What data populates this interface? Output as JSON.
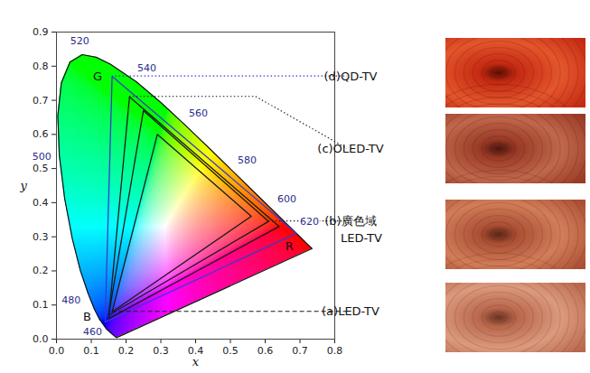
{
  "chart_data": {
    "type": "chromaticity",
    "xlabel": "x",
    "ylabel": "y",
    "xlim": [
      0,
      0.8
    ],
    "ylim": [
      0,
      0.9
    ],
    "xticks": [
      {
        "value": 0,
        "label": "0.0"
      },
      0.1,
      0.2,
      0.3,
      0.4,
      0.5,
      0.6,
      0.7,
      0.8
    ],
    "yticks": [
      {
        "value": 0,
        "label": "0.0"
      },
      0.1,
      0.2,
      0.3,
      0.4,
      0.5,
      0.6,
      0.7,
      0.8,
      0.9
    ],
    "grid": false,
    "spectral_locus": {
      "x": [
        0.1741,
        0.1714,
        0.1644,
        0.1566,
        0.144,
        0.1241,
        0.1096,
        0.0913,
        0.0687,
        0.0454,
        0.0235,
        0.0082,
        0.0039,
        0.0139,
        0.0389,
        0.0743,
        0.1142,
        0.1547,
        0.2296,
        0.3016,
        0.3731,
        0.4441,
        0.5125,
        0.5752,
        0.627,
        0.6658,
        0.6915,
        0.719,
        0.73,
        0.7347
      ],
      "y": [
        0.005,
        0.0051,
        0.0109,
        0.0177,
        0.0297,
        0.0578,
        0.0868,
        0.1327,
        0.2007,
        0.295,
        0.4127,
        0.5384,
        0.6548,
        0.7502,
        0.812,
        0.8338,
        0.8262,
        0.8059,
        0.7543,
        0.6923,
        0.6245,
        0.5547,
        0.4866,
        0.4242,
        0.3725,
        0.334,
        0.3083,
        0.2809,
        0.27,
        0.2653
      ]
    },
    "wavelength_labels": [
      {
        "value": 460,
        "x": 0.144,
        "y": 0.0297
      },
      {
        "value": 480,
        "x": 0.0913,
        "y": 0.1327
      },
      {
        "value": 500,
        "x": 0.0082,
        "y": 0.5384
      },
      {
        "value": 520,
        "x": 0.0743,
        "y": 0.8338
      },
      {
        "value": 540,
        "x": 0.2296,
        "y": 0.7543
      },
      {
        "value": 560,
        "x": 0.3731,
        "y": 0.6245
      },
      {
        "value": 580,
        "x": 0.5125,
        "y": 0.4866
      },
      {
        "value": 600,
        "x": 0.627,
        "y": 0.3725
      },
      {
        "value": 620,
        "x": 0.6915,
        "y": 0.3083
      }
    ],
    "vertex_labels": [
      "R",
      "G",
      "B"
    ],
    "series": [
      {
        "name": "(a)LED-TV",
        "color": "#1a1a1a",
        "line_style": "dashed",
        "x": [
          0.56,
          0.29,
          0.16
        ],
        "y": [
          0.36,
          0.6,
          0.08
        ]
      },
      {
        "name": "(b)廣色域 LED-TV",
        "color": "#1a1a1a",
        "line_style": "dotted",
        "x": [
          0.61,
          0.25,
          0.15
        ],
        "y": [
          0.345,
          0.67,
          0.07
        ]
      },
      {
        "name": "(c)OLED-TV",
        "color": "#1a1a1a",
        "line_style": "dotted",
        "x": [
          0.64,
          0.21,
          0.15
        ],
        "y": [
          0.33,
          0.71,
          0.06
        ]
      },
      {
        "name": "(d)QD-TV",
        "color": "#3a3ac8",
        "line_style": "dotted",
        "x": [
          0.69,
          0.16,
          0.14
        ],
        "y": [
          0.31,
          0.77,
          0.05
        ]
      }
    ]
  }
}
